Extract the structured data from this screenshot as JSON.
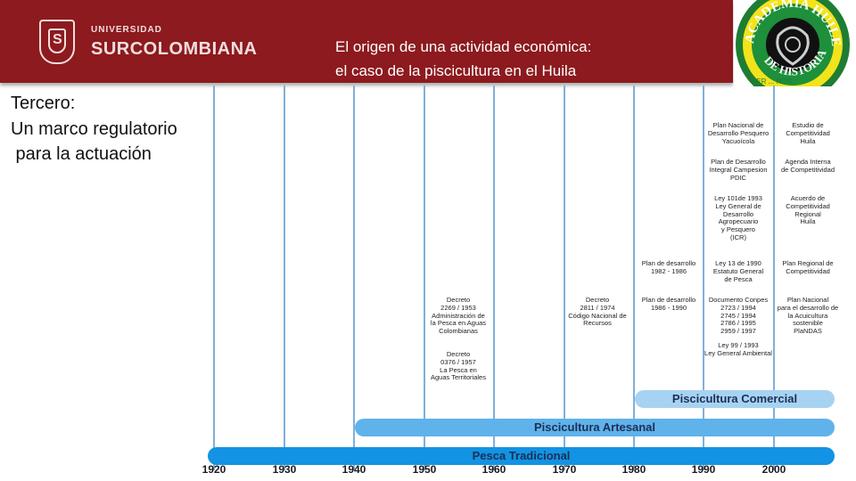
{
  "header": {
    "logo_small": "UNIVERSIDAD",
    "logo_big": "SURCOLOMBIANA",
    "title_line1": "El origen de una actividad económica:",
    "title_line2": "el caso de la piscicultura en el Huila",
    "emblem_text": "ACADEMIA HUILENSE DE HISTORIA",
    "emblem_bottom_text": "VER ... NOS"
  },
  "side_text": {
    "line1": "Tercero:",
    "line2": "Un marco regulatorio",
    "line3": " para la actuación"
  },
  "years": [
    "1920",
    "1930",
    "1940",
    "1950",
    "1960",
    "1970",
    "1980",
    "1990",
    "2000"
  ],
  "bars": {
    "comercial": "Piscicultura Comercial",
    "artesanal": "Piscicultura Artesanal",
    "tradicional": "Pesca Tradicional"
  },
  "notes": {
    "decreto_2269": "Decreto\n2269 / 1953\nAdministración de\nla Pesca en Aguas\nColombianas",
    "decreto_0376": "Decreto\n0376 / 1957\nLa Pesca en\nAguas Territoriales",
    "decreto_2811": "Decreto\n2811 / 1974\nCódigo Nacional de\nRecursos",
    "plan_1982": "Plan de desarrollo\n1982 - 1986",
    "plan_1986": "Plan de desarrollo\n1986 - 1990",
    "plan_pesquero": "Plan Nacional de\nDesarrollo Pesquero\nYacuoícola",
    "pdic": "Plan de Desarrollo\nIntegral Campesion\nPDIC",
    "ley_101": "Ley 101de 1993\nLey General de\nDesarrollo\nAgropecuario\ny Pesquero\n(ICR)",
    "ley_13": "Ley 13 de 1990\nEstatuto General\nde Pesca",
    "conpes": "Documento Conpes\n2723 / 1994\n2745 / 1994\n2786 / 1995\n2959 / 1997",
    "ley_99": "Ley 99 / 1993\nLey General Ambiental",
    "estudio": "Estudio de\nCompetitividad\nHuila",
    "agenda": "Agenda Interna\nde Competitividad",
    "acuerdo": "Acuerdo de\nCompetitividad\nRegional\nHuila",
    "plan_regional": "Plan Regional de\nCompetitividad",
    "plandas": "Plan Nacional\npara el desarrollo de\nla Acuicultura\nsostenible\nPlaNDAS"
  }
}
